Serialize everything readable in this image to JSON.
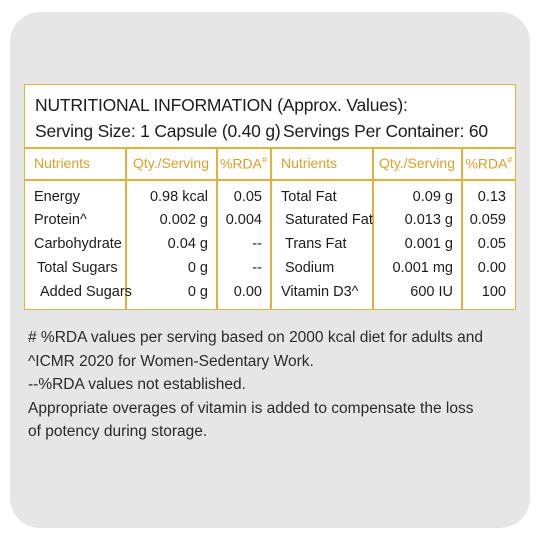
{
  "title": "NUTRITIONAL INFORMATION (Approx. Values):",
  "serving_size": "Serving Size: 1 Capsule (0.40 g)",
  "servings_per_container": "Servings Per Container: 60",
  "headers": {
    "nutrients": "Nutrients",
    "qty": "Qty./Serving",
    "rda": "%RDA",
    "rda_mark": "#"
  },
  "left_rows": [
    {
      "name": "Energy",
      "qty": "0.98 kcal",
      "rda": "0.05"
    },
    {
      "name": "Protein^",
      "qty": "0.002 g",
      "rda": "0.004"
    },
    {
      "name": "Carbohydrate",
      "qty": "0.04 g",
      "rda": "--"
    },
    {
      "name": "Total Sugars",
      "qty": "0 g",
      "rda": "--"
    },
    {
      "name": "Added Sugars",
      "qty": "0 g",
      "rda": "0.00"
    }
  ],
  "right_rows": [
    {
      "name": "Total Fat",
      "qty": "0.09 g",
      "rda": "0.13"
    },
    {
      "name": "Saturated Fat",
      "qty": "0.013 g",
      "rda": "0.059"
    },
    {
      "name": "Trans Fat",
      "qty": "0.001 g",
      "rda": "0.05"
    },
    {
      "name": "Sodium",
      "qty": "0.001 mg",
      "rda": "0.00"
    },
    {
      "name": "Vitamin D3^",
      "qty": "600 IU",
      "rda": "100"
    }
  ],
  "notes": [
    "# %RDA values per serving based on 2000 kcal diet for adults and",
    "^ICMR 2020 for Women-Sedentary Work.",
    "--%RDA values not established.",
    "Appropriate overages of vitamin is added to compensate the loss",
    "of potency during storage."
  ],
  "colors": {
    "accent": "#e2b13d",
    "header_text": "#d9a02b",
    "card_bg": "#e6e6e6"
  }
}
